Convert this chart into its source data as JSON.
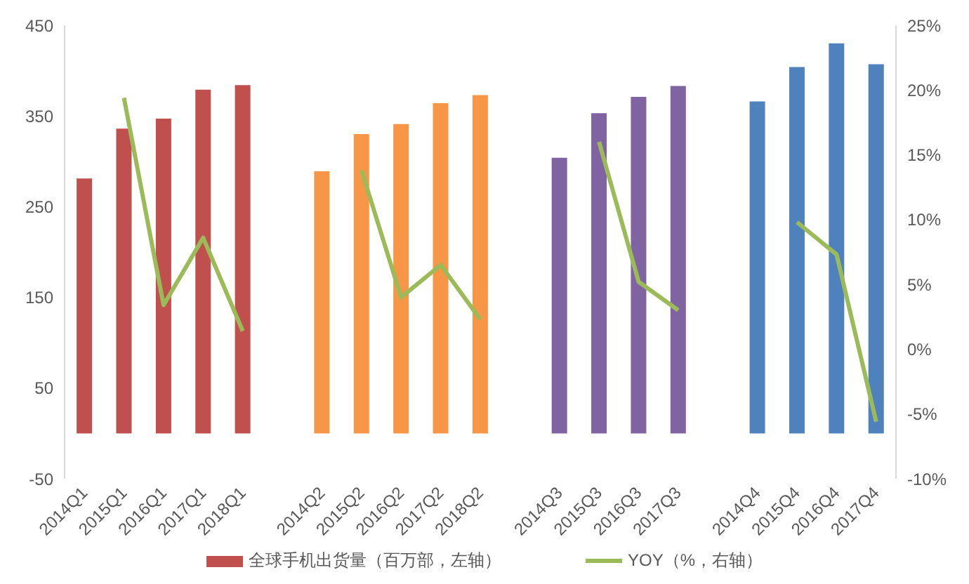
{
  "chart_data": {
    "type": "bar",
    "categories": [
      "2014Q1",
      "2015Q1",
      "2016Q1",
      "2017Q1",
      "2018Q1",
      null,
      "2014Q2",
      "2015Q2",
      "2016Q2",
      "2017Q2",
      "2018Q2",
      null,
      "2014Q3",
      "2015Q3",
      "2016Q3",
      "2017Q3",
      null,
      "2014Q4",
      "2015Q4",
      "2016Q4",
      "2017Q4"
    ],
    "series": [
      {
        "name": "全球手机出货量（百万部，左轴）",
        "color": "#c0504d",
        "colors": [
          "#c0504d",
          "#c0504d",
          "#c0504d",
          "#c0504d",
          "#c0504d",
          null,
          "#f79646",
          "#f79646",
          "#f79646",
          "#f79646",
          "#f79646",
          null,
          "#8064a2",
          "#8064a2",
          "#8064a2",
          "#8064a2",
          null,
          "#4f81bd",
          "#4f81bd",
          "#4f81bd",
          "#4f81bd"
        ],
        "values": [
          281,
          336,
          347,
          379,
          384,
          null,
          289,
          330,
          341,
          364,
          373,
          null,
          304,
          353,
          371,
          383,
          null,
          366,
          404,
          430,
          407
        ]
      },
      {
        "name": "YOY（%，右轴）",
        "type": "line",
        "axis": "y2",
        "color": "#9bbb59",
        "values": [
          null,
          19.4,
          3.4,
          8.6,
          1.4,
          null,
          null,
          13.8,
          4.0,
          6.5,
          2.3,
          null,
          null,
          16.0,
          5.2,
          3.0,
          null,
          null,
          9.8,
          7.3,
          -5.6
        ]
      }
    ],
    "ylim": [
      -50,
      450
    ],
    "yticks": [
      -50,
      50,
      150,
      250,
      350,
      450
    ],
    "y2lim": [
      -10,
      25
    ],
    "y2ticks": [
      {
        "value": -10,
        "label": "-10%"
      },
      {
        "value": -5,
        "label": "-5%"
      },
      {
        "value": 0,
        "label": "0%"
      },
      {
        "value": 5,
        "label": "5%"
      },
      {
        "value": 10,
        "label": "10%"
      },
      {
        "value": 15,
        "label": "15%"
      },
      {
        "value": 20,
        "label": "20%"
      },
      {
        "value": 25,
        "label": "25%"
      }
    ],
    "grid": false,
    "legend": "bottom",
    "marker": "none",
    "line_style": "solid"
  }
}
